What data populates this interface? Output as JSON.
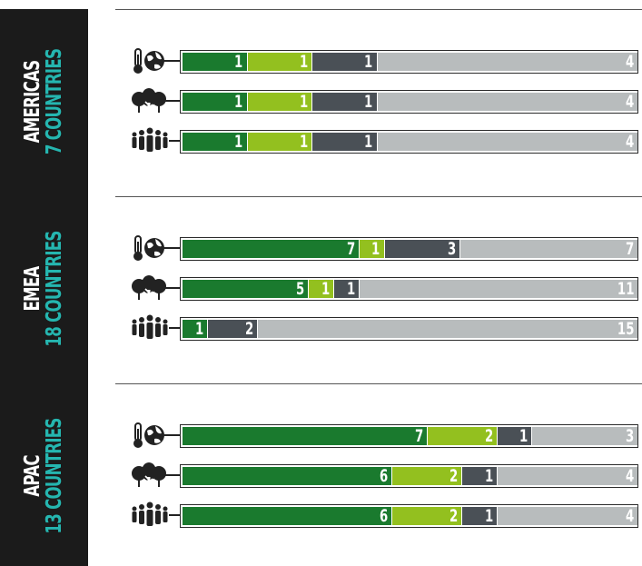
{
  "colors": {
    "dark_green": "#1a7a2e",
    "light_green": "#93c01f",
    "dark_gray": "#4a5056",
    "light_gray": "#b8bcbd",
    "sidebar": "#1b1b1b",
    "teal": "#25b6b0"
  },
  "chart_data": {
    "type": "bar",
    "orientation": "horizontal",
    "stacked": true,
    "icon_legend": [
      "thermometer-globe-icon",
      "trees-icon",
      "people-icon"
    ],
    "regions": [
      {
        "name": "AMERICAS",
        "countries_label": "7 COUNTRIES",
        "rows": [
          {
            "icon": "thermometer-globe-icon",
            "values": [
              1,
              1,
              1,
              4
            ]
          },
          {
            "icon": "trees-icon",
            "values": [
              1,
              1,
              1,
              4
            ]
          },
          {
            "icon": "people-icon",
            "values": [
              1,
              1,
              1,
              4
            ]
          }
        ]
      },
      {
        "name": "EMEA",
        "countries_label": "18 COUNTRIES",
        "rows": [
          {
            "icon": "thermometer-globe-icon",
            "values": [
              7,
              1,
              3,
              7
            ]
          },
          {
            "icon": "trees-icon",
            "values": [
              5,
              1,
              1,
              11
            ]
          },
          {
            "icon": "people-icon",
            "values": [
              1,
              0,
              2,
              15
            ]
          }
        ]
      },
      {
        "name": "APAC",
        "countries_label": "13 COUNTRIES",
        "rows": [
          {
            "icon": "thermometer-globe-icon",
            "values": [
              7,
              2,
              1,
              3
            ]
          },
          {
            "icon": "trees-icon",
            "values": [
              6,
              2,
              1,
              4
            ]
          },
          {
            "icon": "people-icon",
            "values": [
              6,
              2,
              1,
              4
            ]
          }
        ]
      }
    ]
  }
}
